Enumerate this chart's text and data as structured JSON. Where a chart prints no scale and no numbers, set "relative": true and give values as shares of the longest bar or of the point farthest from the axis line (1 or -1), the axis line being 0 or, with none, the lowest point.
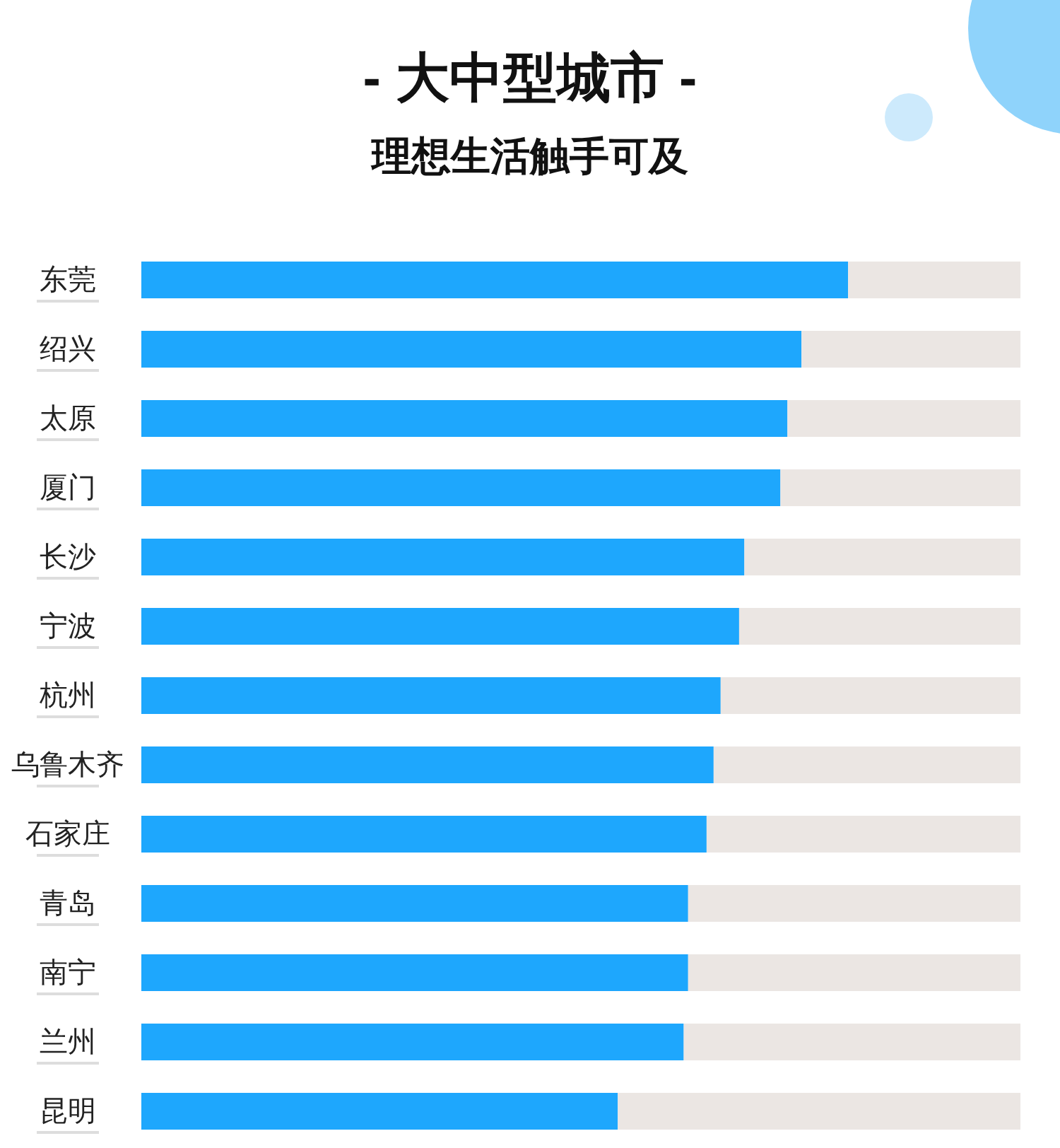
{
  "chart_data": {
    "type": "bar",
    "orientation": "horizontal",
    "stacked": true,
    "relative": true,
    "title": "- 大中型城市 -",
    "subtitle": "理想生活触手可及",
    "categories": [
      "东莞",
      "绍兴",
      "太原",
      "厦门",
      "长沙",
      "宁波",
      "杭州",
      "乌鲁木齐",
      "石家庄",
      "青岛",
      "南宁",
      "兰州",
      "昆明"
    ],
    "series": [
      {
        "color": "#1ea7fd",
        "values": [
          0.804,
          0.751,
          0.735,
          0.727,
          0.686,
          0.68,
          0.659,
          0.651,
          0.643,
          0.622,
          0.622,
          0.617,
          0.542
        ]
      },
      {
        "color": "#ebe6e3",
        "values": [
          0.196,
          0.249,
          0.265,
          0.273,
          0.314,
          0.32,
          0.341,
          0.349,
          0.357,
          0.378,
          0.378,
          0.383,
          0.458
        ]
      }
    ]
  }
}
